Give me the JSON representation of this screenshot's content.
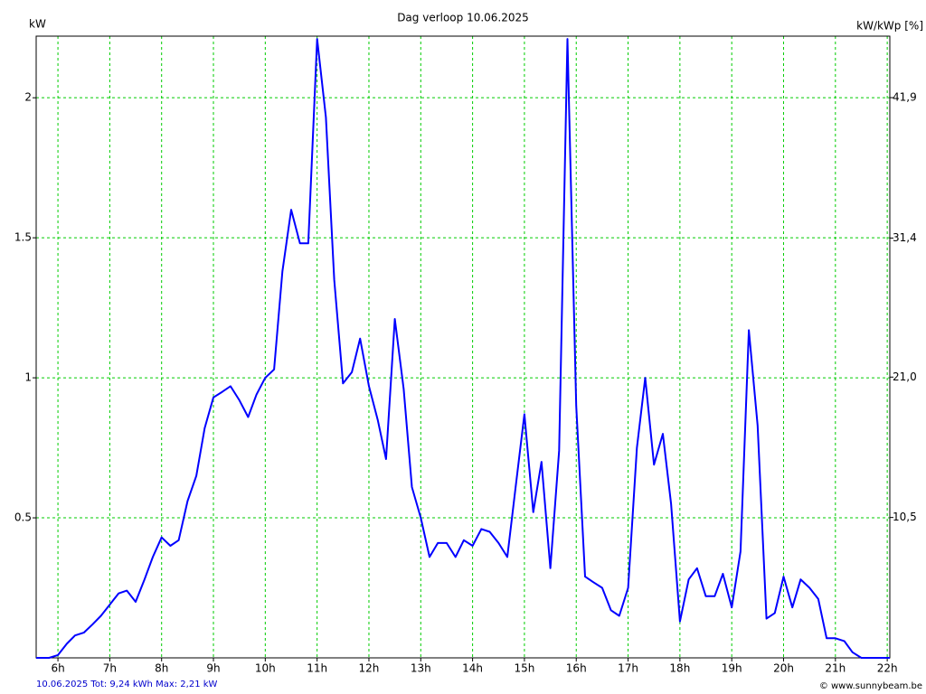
{
  "chart_data": {
    "type": "line",
    "title": "Dag  verloop 10.06.2025",
    "y_label": "kW",
    "y2_label": "kW/kWp [%]",
    "footer_left": "10.06.2025 Tot: 9,24 kWh Max: 2,21 kW",
    "footer_right": "© www.sunnybeam.be",
    "color": "#0000ff",
    "grid": true,
    "xlim": [
      5.58,
      22.05
    ],
    "ylim": [
      0,
      2.22
    ],
    "y2lim": [
      0,
      46.5
    ],
    "xticks": [
      {
        "value": 6,
        "label": "6h"
      },
      {
        "value": 7,
        "label": "7h"
      },
      {
        "value": 8,
        "label": "8h"
      },
      {
        "value": 9,
        "label": "9h"
      },
      {
        "value": 10,
        "label": "10h"
      },
      {
        "value": 11,
        "label": "11h"
      },
      {
        "value": 12,
        "label": "12h"
      },
      {
        "value": 13,
        "label": "13h"
      },
      {
        "value": 14,
        "label": "14h"
      },
      {
        "value": 15,
        "label": "15h"
      },
      {
        "value": 16,
        "label": "16h"
      },
      {
        "value": 17,
        "label": "17h"
      },
      {
        "value": 18,
        "label": "18h"
      },
      {
        "value": 19,
        "label": "19h"
      },
      {
        "value": 20,
        "label": "20h"
      },
      {
        "value": 21,
        "label": "21h"
      },
      {
        "value": 22,
        "label": "22h"
      }
    ],
    "yticks": [
      0.5,
      1,
      1.5,
      2
    ],
    "y2ticks": [
      {
        "value": 10.5,
        "label": "10,5"
      },
      {
        "value": 21.0,
        "label": "21,0"
      },
      {
        "value": 31.4,
        "label": "31,4"
      },
      {
        "value": 41.9,
        "label": "41,9"
      }
    ],
    "x": [
      5.58,
      5.83,
      6,
      6.17,
      6.33,
      6.5,
      6.67,
      6.83,
      7,
      7.17,
      7.33,
      7.5,
      7.67,
      7.83,
      8,
      8.17,
      8.33,
      8.5,
      8.67,
      8.83,
      9,
      9.17,
      9.33,
      9.5,
      9.67,
      9.83,
      10,
      10.17,
      10.33,
      10.5,
      10.67,
      10.83,
      11,
      11.17,
      11.33,
      11.5,
      11.67,
      11.83,
      12,
      12.17,
      12.33,
      12.5,
      12.67,
      12.83,
      13,
      13.17,
      13.33,
      13.5,
      13.67,
      13.83,
      14,
      14.17,
      14.33,
      14.5,
      14.67,
      14.83,
      15,
      15.17,
      15.33,
      15.5,
      15.67,
      15.83,
      16,
      16.17,
      16.33,
      16.5,
      16.67,
      16.83,
      17,
      17.17,
      17.33,
      17.5,
      17.67,
      17.83,
      18,
      18.17,
      18.33,
      18.5,
      18.67,
      18.83,
      19,
      19.17,
      19.33,
      19.5,
      19.67,
      19.83,
      20,
      20.17,
      20.33,
      20.5,
      20.67,
      20.83,
      21,
      21.17,
      21.33,
      21.5,
      22.05
    ],
    "values": [
      0,
      0,
      0.01,
      0.05,
      0.08,
      0.09,
      0.12,
      0.15,
      0.19,
      0.23,
      0.24,
      0.2,
      0.28,
      0.36,
      0.43,
      0.4,
      0.42,
      0.56,
      0.65,
      0.82,
      0.93,
      0.95,
      0.97,
      0.92,
      0.86,
      0.94,
      1.0,
      1.03,
      1.38,
      1.6,
      1.48,
      1.48,
      2.21,
      1.93,
      1.35,
      0.98,
      1.02,
      1.14,
      0.97,
      0.85,
      0.71,
      1.21,
      0.96,
      0.61,
      0.5,
      0.36,
      0.41,
      0.41,
      0.36,
      0.42,
      0.4,
      0.46,
      0.45,
      0.41,
      0.36,
      0.61,
      0.87,
      0.52,
      0.7,
      0.32,
      0.74,
      2.21,
      0.9,
      0.29,
      0.27,
      0.25,
      0.17,
      0.15,
      0.25,
      0.75,
      1.0,
      0.69,
      0.8,
      0.55,
      0.13,
      0.28,
      0.32,
      0.22,
      0.22,
      0.3,
      0.18,
      0.38,
      1.17,
      0.83,
      0.14,
      0.16,
      0.29,
      0.18,
      0.28,
      0.25,
      0.21,
      0.07,
      0.07,
      0.06,
      0.02,
      0,
      0
    ]
  }
}
